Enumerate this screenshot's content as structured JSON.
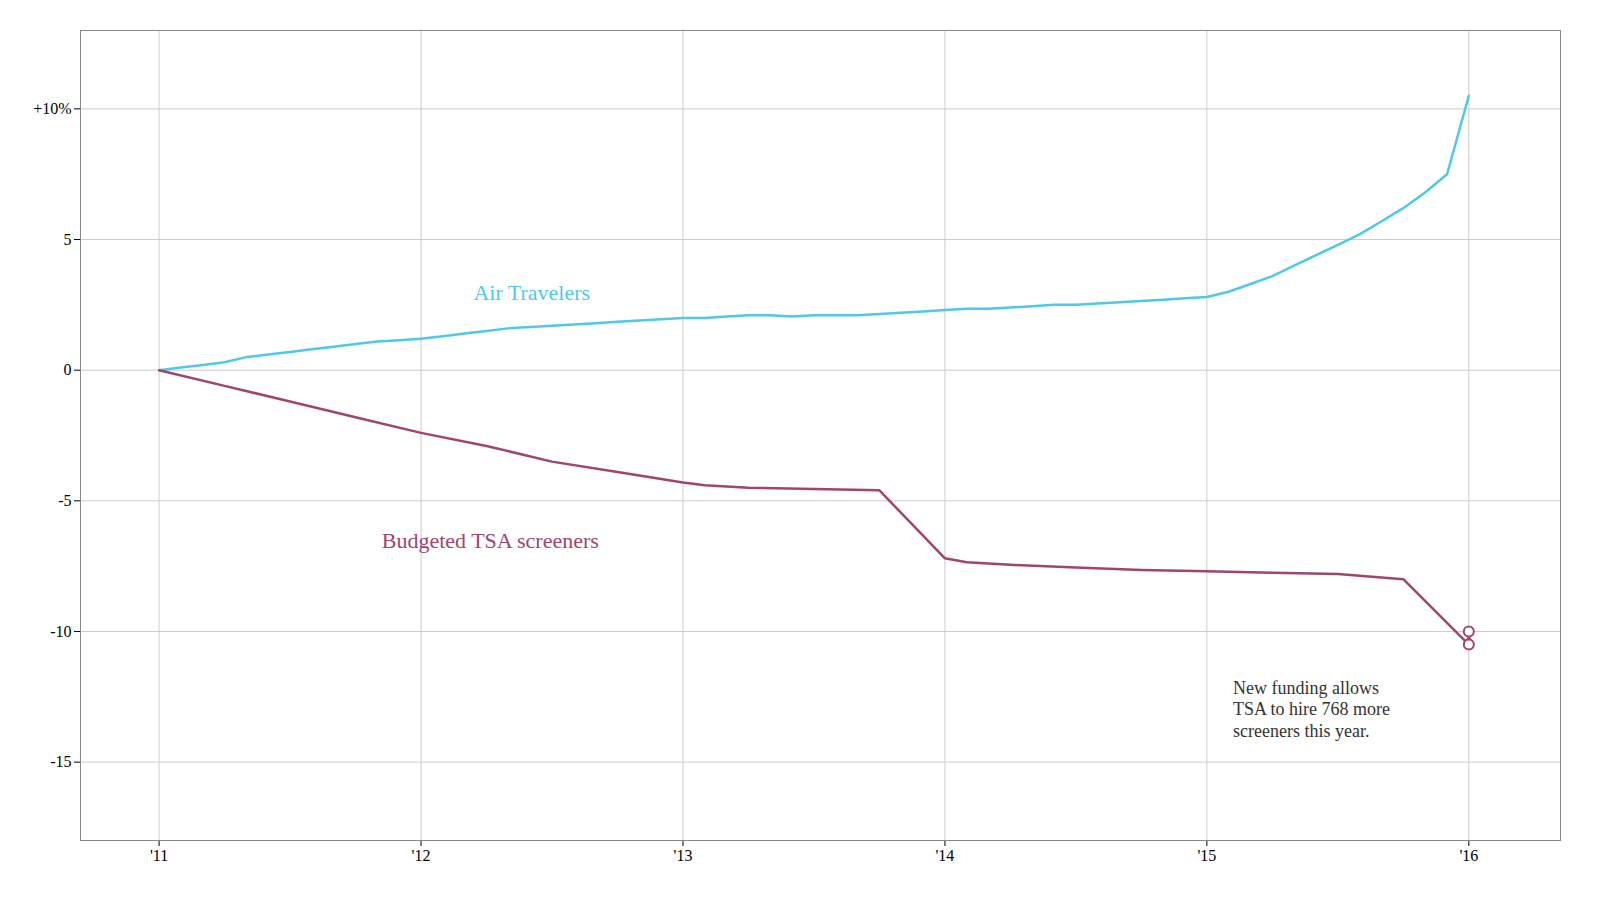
{
  "chart_data": {
    "type": "line",
    "series": [
      {
        "name": "Air Travelers",
        "color": "#4ec9e8",
        "label_x": 2012.2,
        "label_y": 2.7,
        "x": [
          2011,
          2011.083,
          2011.167,
          2011.25,
          2011.333,
          2011.417,
          2011.5,
          2011.583,
          2011.667,
          2011.75,
          2011.833,
          2011.917,
          2012,
          2012.083,
          2012.167,
          2012.25,
          2012.333,
          2012.417,
          2012.5,
          2012.583,
          2012.667,
          2012.75,
          2012.833,
          2012.917,
          2013,
          2013.083,
          2013.167,
          2013.25,
          2013.333,
          2013.417,
          2013.5,
          2013.583,
          2013.667,
          2013.75,
          2013.833,
          2013.917,
          2014,
          2014.083,
          2014.167,
          2014.25,
          2014.333,
          2014.417,
          2014.5,
          2014.583,
          2014.667,
          2014.75,
          2014.833,
          2014.917,
          2015,
          2015.083,
          2015.167,
          2015.25,
          2015.333,
          2015.417,
          2015.5,
          2015.583,
          2015.667,
          2015.75,
          2015.833,
          2015.917,
          2016
        ],
        "values": [
          0,
          0.1,
          0.2,
          0.3,
          0.5,
          0.6,
          0.7,
          0.8,
          0.9,
          1.0,
          1.1,
          1.15,
          1.2,
          1.3,
          1.4,
          1.5,
          1.6,
          1.65,
          1.7,
          1.75,
          1.8,
          1.85,
          1.9,
          1.95,
          2.0,
          2.0,
          2.05,
          2.1,
          2.1,
          2.05,
          2.1,
          2.1,
          2.1,
          2.15,
          2.2,
          2.25,
          2.3,
          2.35,
          2.35,
          2.4,
          2.45,
          2.5,
          2.5,
          2.55,
          2.6,
          2.65,
          2.7,
          2.75,
          2.8,
          3.0,
          3.3,
          3.6,
          4.0,
          4.4,
          4.8,
          5.2,
          5.7,
          6.2,
          6.8,
          7.5,
          10.5
        ]
      },
      {
        "name": "Budgeted TSA screeners",
        "color": "#a0456e",
        "label_x": 2011.85,
        "label_y": -6.8,
        "x": [
          2011,
          2011.25,
          2011.5,
          2011.75,
          2012,
          2012.25,
          2012.5,
          2012.75,
          2013,
          2013.083,
          2013.25,
          2013.5,
          2013.75,
          2014,
          2014.083,
          2014.25,
          2014.5,
          2014.75,
          2015,
          2015.25,
          2015.5,
          2015.75,
          2016
        ],
        "values": [
          0,
          -0.6,
          -1.2,
          -1.8,
          -2.4,
          -2.9,
          -3.5,
          -3.9,
          -4.3,
          -4.4,
          -4.5,
          -4.55,
          -4.6,
          -7.2,
          -7.35,
          -7.45,
          -7.55,
          -7.65,
          -7.7,
          -7.75,
          -7.8,
          -8.0,
          -10.5
        ],
        "projected": {
          "x": 2016,
          "from": -10.5,
          "to": -10.0
        }
      }
    ],
    "annotations": [
      {
        "text": "New funding allows\nTSA to hire 768 more\nscreeners this year.",
        "x": 2015.1,
        "y": -11.8
      }
    ],
    "xlim": [
      2010.7,
      2016.35
    ],
    "ylim": [
      -18,
      13
    ],
    "xticks": [
      {
        "value": 2011,
        "label": "'11"
      },
      {
        "value": 2012,
        "label": "'12"
      },
      {
        "value": 2013,
        "label": "'13"
      },
      {
        "value": 2014,
        "label": "'14"
      },
      {
        "value": 2015,
        "label": "'15"
      },
      {
        "value": 2016,
        "label": "'16"
      }
    ],
    "yticks": [
      {
        "value": 10,
        "label": "+10%"
      },
      5,
      0,
      -5,
      -10,
      -15
    ],
    "grid": true
  }
}
